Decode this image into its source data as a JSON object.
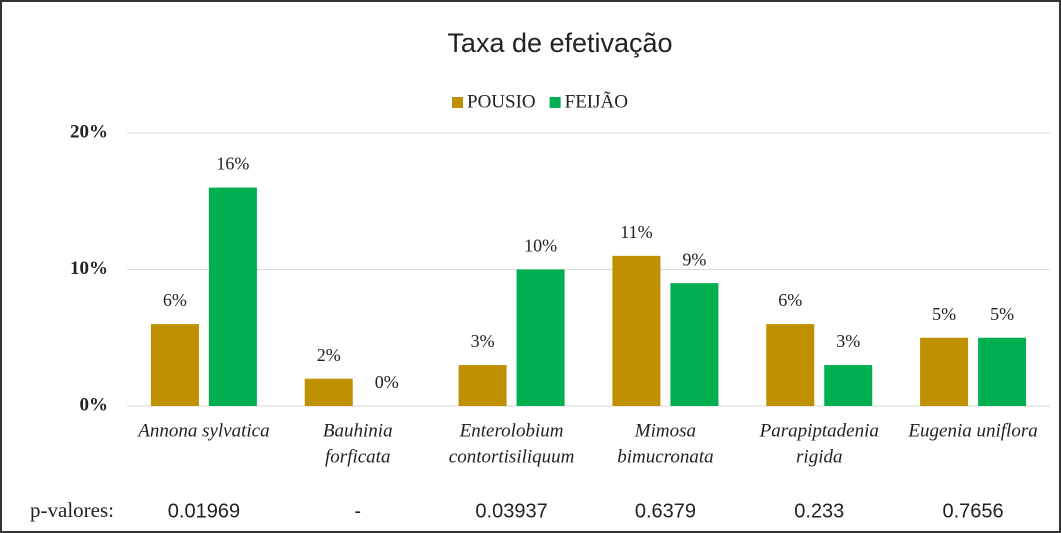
{
  "chart_data": {
    "type": "bar",
    "title": "Taxa de efetivação",
    "categories": [
      [
        "Annona sylvatica"
      ],
      [
        "Bauhinia",
        "forficata"
      ],
      [
        "Enterolobium",
        "contortisiliquum"
      ],
      [
        "Mimosa",
        "bimucronata"
      ],
      [
        "Parapiptadenia",
        "rigida"
      ],
      [
        "Eugenia uniflora"
      ]
    ],
    "series": [
      {
        "name": "POUSIO",
        "color": "#bf9000",
        "values": [
          6,
          2,
          3,
          11,
          6,
          5
        ],
        "value_labels": [
          "6%",
          "2%",
          "3%",
          "11%",
          "6%",
          "5%"
        ]
      },
      {
        "name": "FEIJÃO",
        "color": "#00b050",
        "values": [
          16,
          0,
          10,
          9,
          3,
          5
        ],
        "value_labels": [
          "16%",
          "0%",
          "10%",
          "9%",
          "3%",
          "5%"
        ]
      }
    ],
    "ylim": [
      0,
      20
    ],
    "yticks": [
      {
        "value": 0,
        "label": "0%"
      },
      {
        "value": 10,
        "label": "10%"
      },
      {
        "value": 20,
        "label": "20%"
      }
    ],
    "grid": true,
    "legend": "top",
    "p_label": "p-valores:",
    "p_values": [
      "0.01969",
      "-",
      "0.03937",
      "0.6379",
      "0.233",
      "0.7656"
    ]
  }
}
